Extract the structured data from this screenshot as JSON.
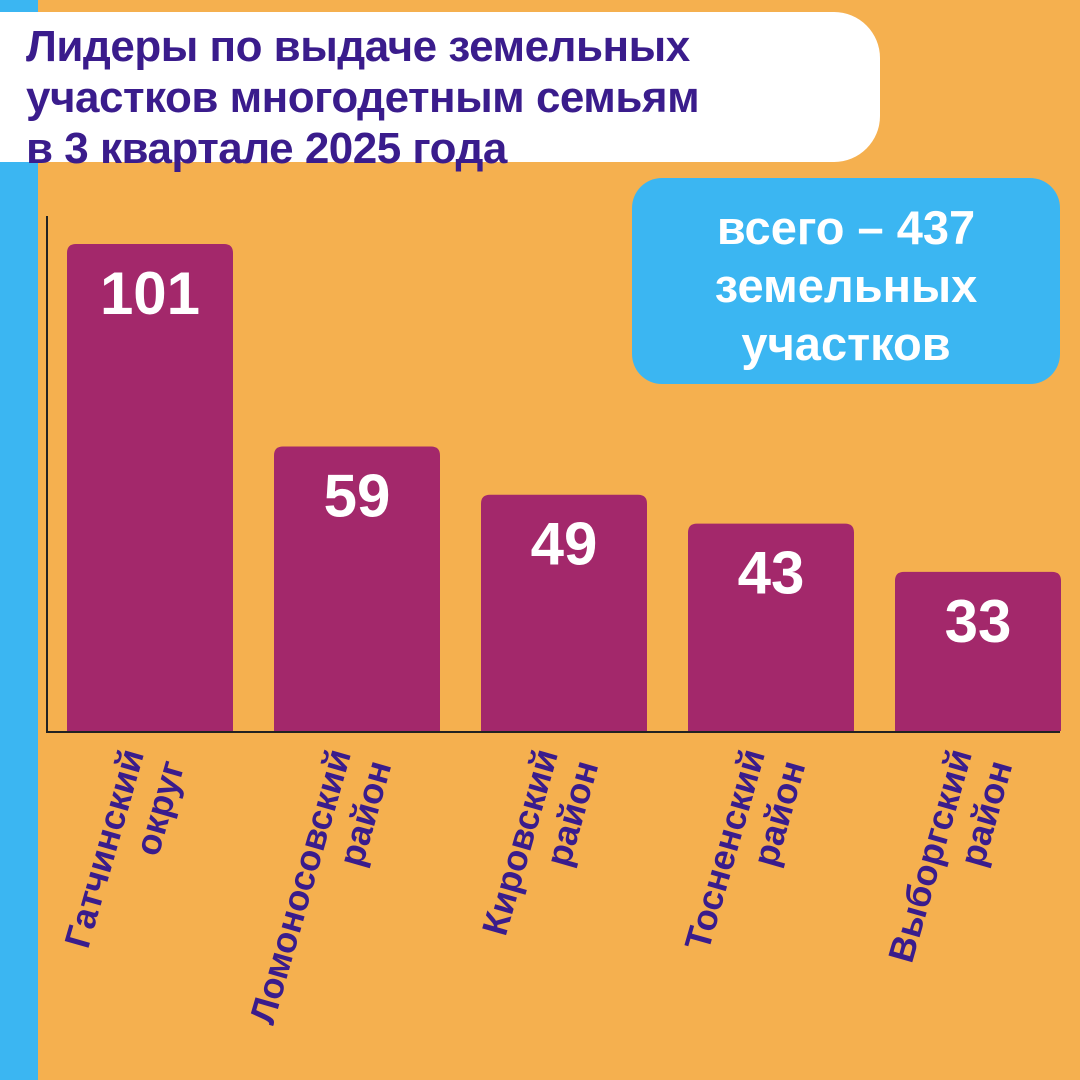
{
  "colors": {
    "background": "#F5B04F",
    "left_stripe": "#3BB6F2",
    "bar": "#A3286B",
    "title_text": "#3A1C8C",
    "total_box": "#3BB6F2",
    "axis": "#222222",
    "value_label": "#FFFFFF"
  },
  "title": {
    "lines": [
      "Лидеры по выдаче земельных",
      "участков многодетным семьям",
      "в 3 квартале 2025 года"
    ]
  },
  "total_note": {
    "lines": [
      "всего – 437",
      "земельных",
      "участков"
    ]
  },
  "chart_data": {
    "type": "bar",
    "categories": [
      [
        "Гатчинский",
        "округ"
      ],
      [
        "Ломоносовский",
        "район"
      ],
      [
        "Кировский",
        "район"
      ],
      [
        "Тосненский",
        "район"
      ],
      [
        "Выборгский",
        "район"
      ]
    ],
    "values": [
      101,
      59,
      49,
      43,
      33
    ],
    "data_labels": [
      "101",
      "59",
      "49",
      "43",
      "33"
    ],
    "title": "Лидеры по выдаче земельных участков многодетным семьям в 3 квартале 2025 года",
    "xlabel": "",
    "ylabel": "",
    "ylim": [
      0,
      105
    ],
    "grid": false,
    "legend": "none"
  }
}
